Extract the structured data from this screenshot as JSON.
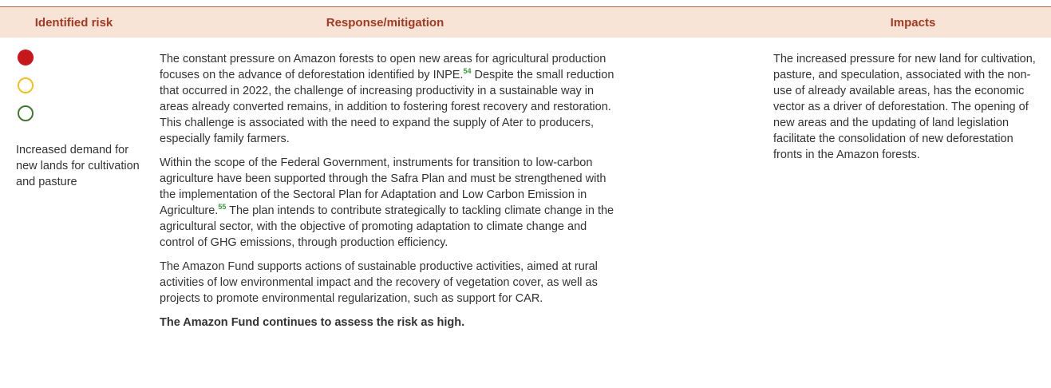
{
  "table": {
    "headers": [
      "Identified risk",
      "Response/mitigation",
      "Impacts"
    ],
    "risk": "Increased demand for new lands for cultivation and pasture",
    "response": [
      {
        "before": "The constant pressure on Amazon forests to open new areas for agricultural production focuses on the advance of deforestation identified by INPE.",
        "note": "54",
        "after": " Despite the small reduction that occurred in 2022, the challenge of increasing productivity in a sustainable way in areas already converted remains, in addition to fostering forest recovery and restoration. This challenge is associated with the need to expand the supply of Ater to producers, especially family farmers."
      },
      {
        "before": "Within the scope of the Federal Government, instruments for transition to low-carbon agriculture have been supported through the Safra Plan and must be strengthened with the implementation of the Sectoral Plan for Adaptation and Low Carbon Emission in Agriculture.",
        "note": "55",
        "after": " The plan intends to contribute strategically to tackling climate change in the agricultural sector, with the objective of promoting adaptation to climate change and control of GHG emissions, through production efficiency."
      },
      {
        "before": "The Amazon Fund supports actions of sustainable productive activities, aimed at rural activities of low environmental impact and the recovery of vegetation cover, as well as projects to promote environmental regularization, such as support for CAR."
      }
    ],
    "conclusion": "The Amazon Fund continues to assess the risk as high.",
    "impacts": "The increased pressure for new land for cultivation, pasture, and speculation, associated with the non-use of already available areas, has the economic vector as a driver of deforestation. The opening of new areas and the updating of land legislation facilitate the consolidation of new deforestation fronts in the Amazon forests."
  }
}
